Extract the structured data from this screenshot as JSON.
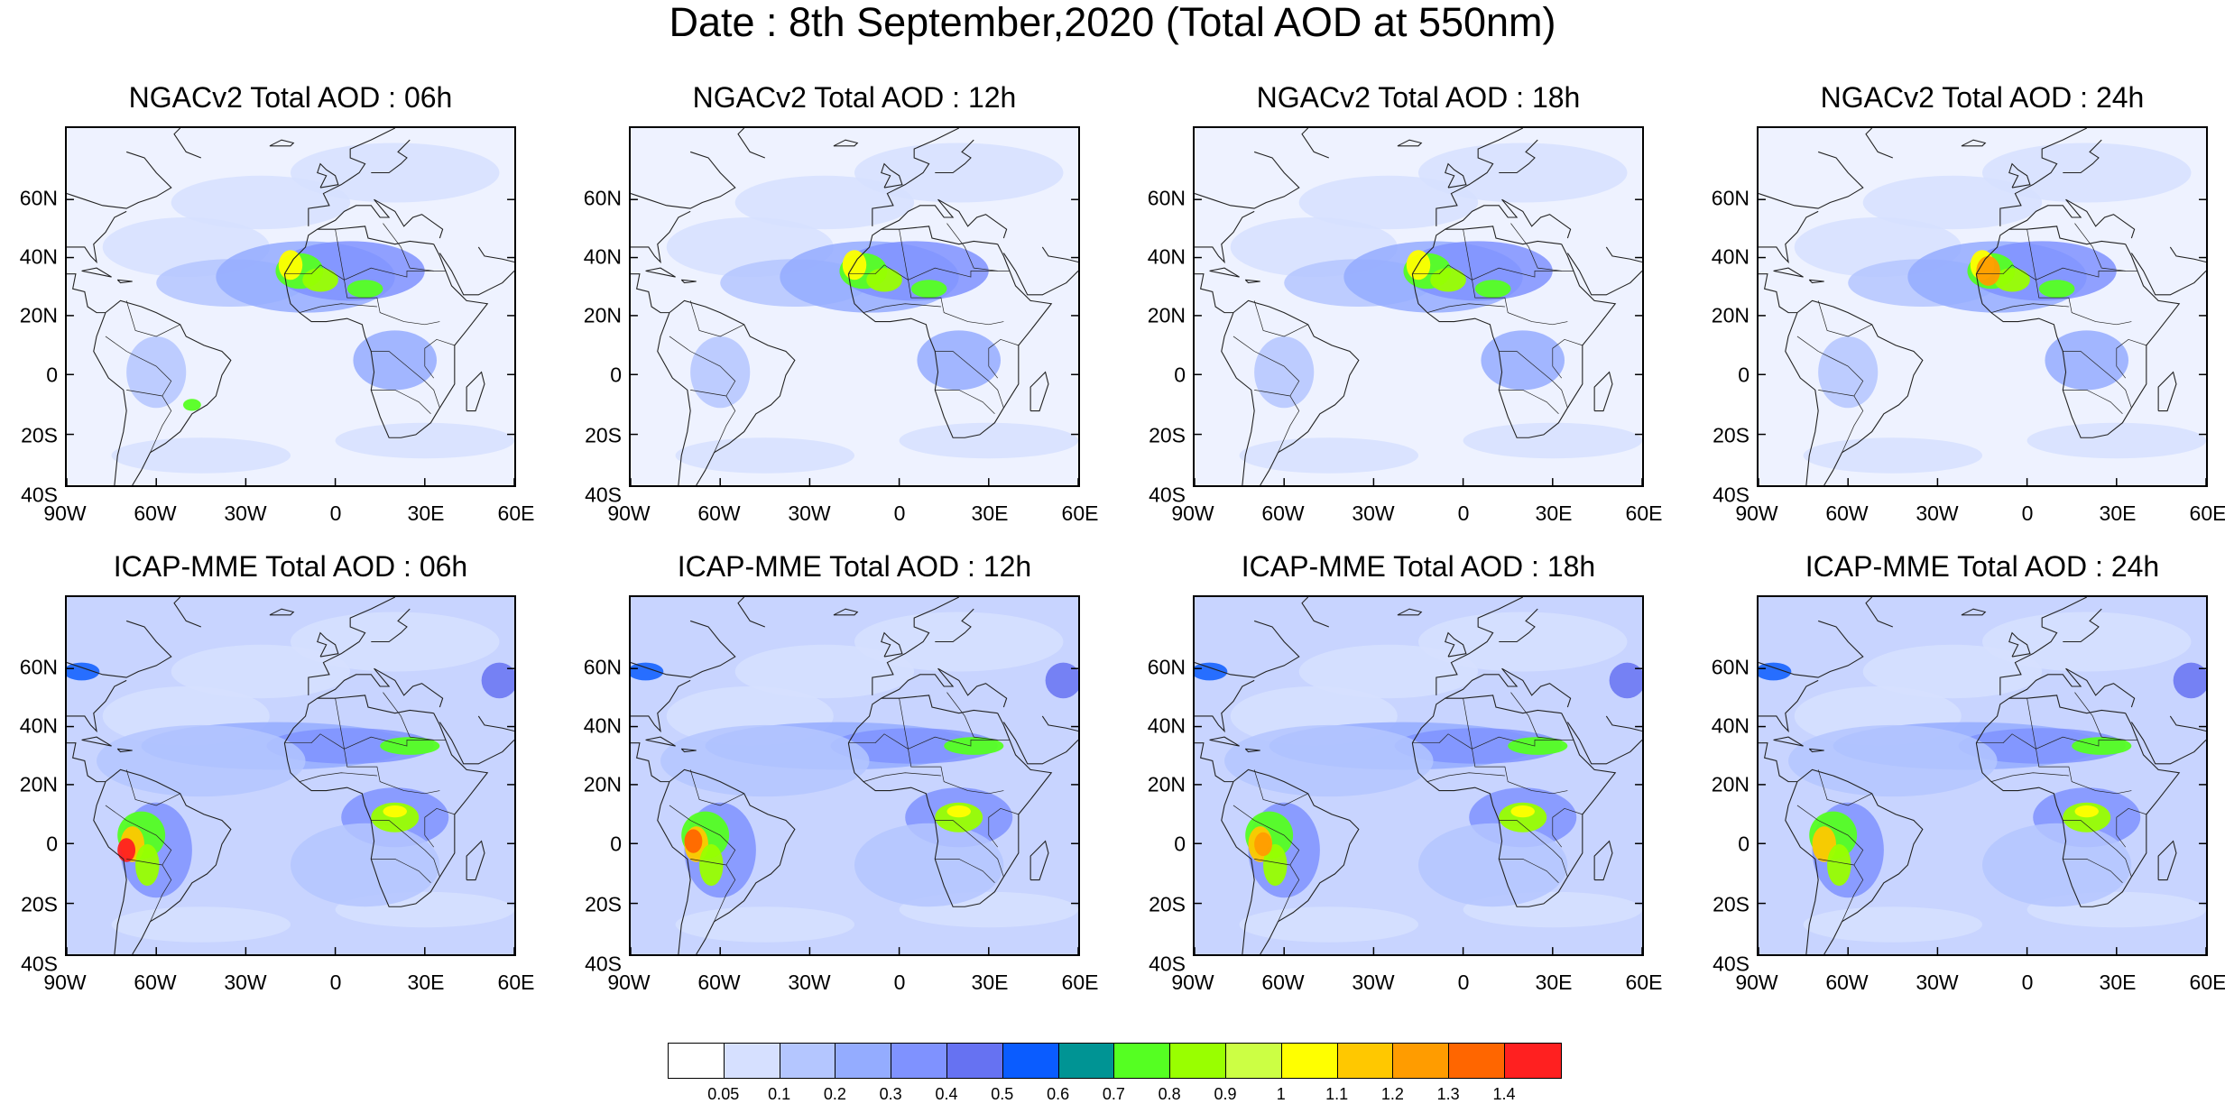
{
  "title": "Date : 8th September,2020 (Total AOD at 550nm)",
  "axis_labels": {
    "lat": [
      "60N",
      "40N",
      "20N",
      "0",
      "20S",
      "40S"
    ],
    "lon": [
      "90W",
      "60W",
      "30W",
      "0",
      "30E",
      "60E"
    ]
  },
  "panels": [
    {
      "title": "NGACv2 Total AOD : 06h",
      "model": "NGACv2",
      "hour": "06h"
    },
    {
      "title": "NGACv2 Total AOD : 12h",
      "model": "NGACv2",
      "hour": "12h"
    },
    {
      "title": "NGACv2 Total AOD : 18h",
      "model": "NGACv2",
      "hour": "18h"
    },
    {
      "title": "NGACv2 Total AOD : 24h",
      "model": "NGACv2",
      "hour": "24h"
    },
    {
      "title": "ICAP-MME Total AOD : 06h",
      "model": "ICAP-MME",
      "hour": "06h"
    },
    {
      "title": "ICAP-MME Total AOD : 12h",
      "model": "ICAP-MME",
      "hour": "12h"
    },
    {
      "title": "ICAP-MME Total AOD : 18h",
      "model": "ICAP-MME",
      "hour": "18h"
    },
    {
      "title": "ICAP-MME Total AOD : 24h",
      "model": "ICAP-MME",
      "hour": "24h"
    }
  ],
  "colorbar": {
    "labels": [
      "0.05",
      "0.1",
      "0.2",
      "0.3",
      "0.4",
      "0.5",
      "0.6",
      "0.7",
      "0.8",
      "0.9",
      "1",
      "1.1",
      "1.2",
      "1.3",
      "1.4"
    ],
    "colors": [
      "#ffffff",
      "#d6e0ff",
      "#b4c6ff",
      "#94acff",
      "#7f92ff",
      "#6672f2",
      "#0a5cff",
      "#009494",
      "#55ff22",
      "#99ff00",
      "#ccff44",
      "#ffff00",
      "#ffc800",
      "#ff9c00",
      "#ff6600",
      "#ff2020"
    ]
  }
}
